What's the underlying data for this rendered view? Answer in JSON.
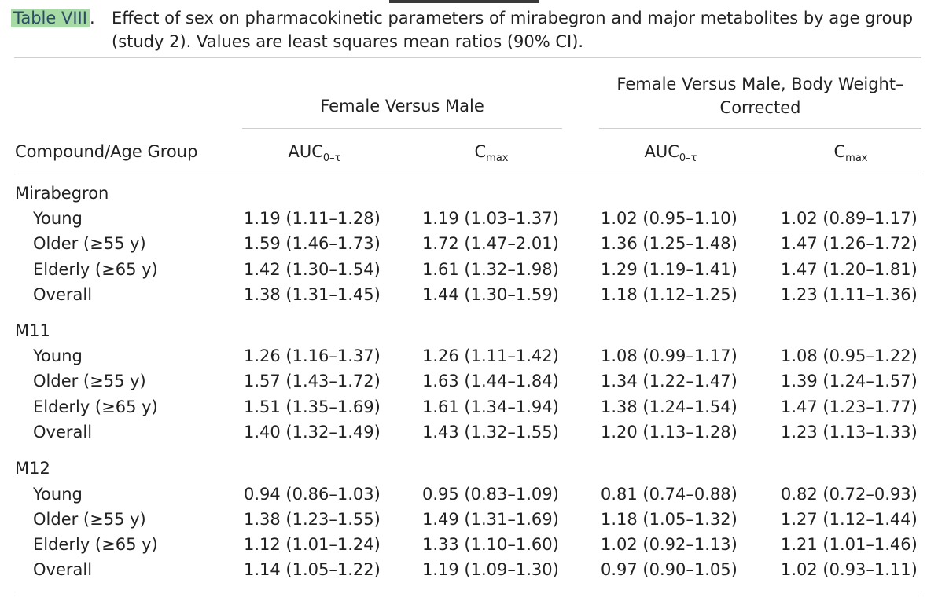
{
  "caption": {
    "label": "Table VIII",
    "separator": ".",
    "text": "Effect of sex on pharmacokinetic parameters of mirabegron and major metabolites by age group (study 2). Values are least squares mean ratios (90% CI)."
  },
  "header": {
    "group1": "Female Versus Male",
    "group2": "Female Versus Male, Body Weight–Corrected",
    "col0": "Compound/Age Group",
    "auc": "AUC",
    "auc_sub": "0–τ",
    "cmax": "C",
    "cmax_sub": "max"
  },
  "sections": [
    {
      "name": "Mirabegron",
      "rows": [
        {
          "label": "Young",
          "v": [
            "1.19 (1.11–1.28)",
            "1.19 (1.03–1.37)",
            "1.02 (0.95–1.10)",
            "1.02 (0.89–1.17)"
          ]
        },
        {
          "label": "Older (≥55 y)",
          "v": [
            "1.59 (1.46–1.73)",
            "1.72 (1.47–2.01)",
            "1.36 (1.25–1.48)",
            "1.47 (1.26–1.72)"
          ]
        },
        {
          "label": "Elderly (≥65 y)",
          "v": [
            "1.42 (1.30–1.54)",
            "1.61 (1.32–1.98)",
            "1.29 (1.19–1.41)",
            "1.47 (1.20–1.81)"
          ]
        },
        {
          "label": "Overall",
          "v": [
            "1.38 (1.31–1.45)",
            "1.44 (1.30–1.59)",
            "1.18 (1.12–1.25)",
            "1.23 (1.11–1.36)"
          ]
        }
      ]
    },
    {
      "name": "M11",
      "rows": [
        {
          "label": "Young",
          "v": [
            "1.26 (1.16–1.37)",
            "1.26 (1.11–1.42)",
            "1.08 (0.99–1.17)",
            "1.08 (0.95–1.22)"
          ]
        },
        {
          "label": "Older (≥55 y)",
          "v": [
            "1.57 (1.43–1.72)",
            "1.63 (1.44–1.84)",
            "1.34 (1.22–1.47)",
            "1.39 (1.24–1.57)"
          ]
        },
        {
          "label": "Elderly (≥65 y)",
          "v": [
            "1.51 (1.35–1.69)",
            "1.61 (1.34–1.94)",
            "1.38 (1.24–1.54)",
            "1.47 (1.23–1.77)"
          ]
        },
        {
          "label": "Overall",
          "v": [
            "1.40 (1.32–1.49)",
            "1.43 (1.32–1.55)",
            "1.20 (1.13–1.28)",
            "1.23 (1.13–1.33)"
          ]
        }
      ]
    },
    {
      "name": "M12",
      "rows": [
        {
          "label": "Young",
          "v": [
            "0.94 (0.86–1.03)",
            "0.95 (0.83–1.09)",
            "0.81 (0.74–0.88)",
            "0.82 (0.72–0.93)"
          ]
        },
        {
          "label": "Older (≥55 y)",
          "v": [
            "1.38 (1.23–1.55)",
            "1.49 (1.31–1.69)",
            "1.18 (1.05–1.32)",
            "1.27 (1.12–1.44)"
          ]
        },
        {
          "label": "Elderly (≥65 y)",
          "v": [
            "1.12 (1.01–1.24)",
            "1.33 (1.10–1.60)",
            "1.02 (0.92–1.13)",
            "1.21 (1.01–1.46)"
          ]
        },
        {
          "label": "Overall",
          "v": [
            "1.14 (1.05–1.22)",
            "1.19 (1.09–1.30)",
            "0.97 (0.90–1.05)",
            "1.02 (0.93–1.11)"
          ]
        }
      ]
    }
  ]
}
